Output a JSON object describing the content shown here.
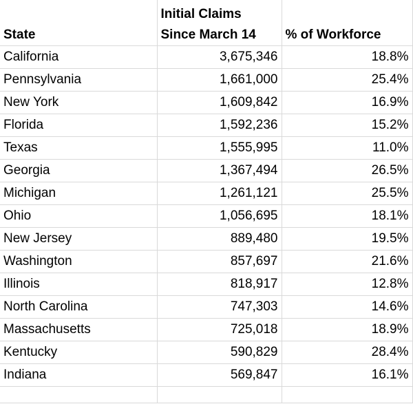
{
  "table": {
    "headers": {
      "state": "State",
      "claims_line1": "Initial Claims",
      "claims_line2": "Since March 14",
      "percent": "% of Workforce"
    },
    "rows": [
      {
        "state": "California",
        "claims": "3,675,346",
        "percent": "18.8%"
      },
      {
        "state": "Pennsylvania",
        "claims": "1,661,000",
        "percent": "25.4%"
      },
      {
        "state": "New York",
        "claims": "1,609,842",
        "percent": "16.9%"
      },
      {
        "state": "Florida",
        "claims": "1,592,236",
        "percent": "15.2%"
      },
      {
        "state": "Texas",
        "claims": "1,555,995",
        "percent": "11.0%"
      },
      {
        "state": "Georgia",
        "claims": "1,367,494",
        "percent": "26.5%"
      },
      {
        "state": "Michigan",
        "claims": "1,261,121",
        "percent": "25.5%"
      },
      {
        "state": "Ohio",
        "claims": "1,056,695",
        "percent": "18.1%"
      },
      {
        "state": "New Jersey",
        "claims": "889,480",
        "percent": "19.5%"
      },
      {
        "state": "Washington",
        "claims": "857,697",
        "percent": "21.6%"
      },
      {
        "state": "Illinois",
        "claims": "818,917",
        "percent": "12.8%"
      },
      {
        "state": "North Carolina",
        "claims": "747,303",
        "percent": "14.6%"
      },
      {
        "state": "Massachusetts",
        "claims": "725,018",
        "percent": "18.9%"
      },
      {
        "state": "Kentucky",
        "claims": "590,829",
        "percent": "28.4%"
      },
      {
        "state": "Indiana",
        "claims": "569,847",
        "percent": "16.1%"
      }
    ]
  },
  "colors": {
    "gridline": "#d9d9d9",
    "text": "#000000",
    "background": "#ffffff"
  }
}
